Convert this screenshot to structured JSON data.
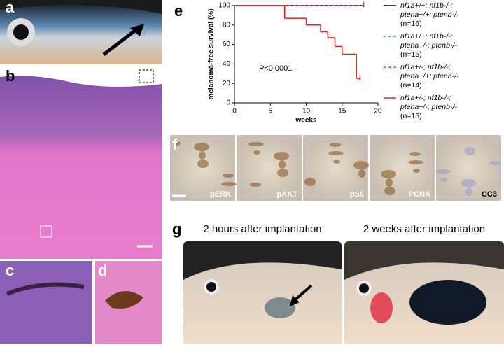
{
  "panel_labels": [
    "a",
    "b",
    "c",
    "d",
    "e",
    "f",
    "g"
  ],
  "stains": [
    "pERK",
    "pAKT",
    "pS6",
    "PCNA",
    "CC3"
  ],
  "implantation_titles": [
    "2 hours after implantation",
    "2 weeks after implantation"
  ],
  "chart_data": {
    "type": "step",
    "ylabel": "melanoma-free survival (%)",
    "xlabel": "weeks",
    "annotation": "P<0.0001",
    "xlim": [
      0,
      20
    ],
    "xticks": [
      0,
      5,
      10,
      15,
      20
    ],
    "ylim": [
      0,
      100
    ],
    "yticks": [
      0,
      20,
      40,
      60,
      80,
      100
    ],
    "series": [
      {
        "name": "nf1a+/+; nf1b-/-;\nptena+/+; ptenb-/-\n(n=16)",
        "color": "#000000",
        "dash": false,
        "x": [
          0,
          18
        ],
        "values": [
          100,
          100
        ]
      },
      {
        "name": "nf1a+/+; nf1b-/-;\nptena+/-; ptenb-/-\n(n=15)",
        "color": "#2eb82e",
        "dash": true,
        "x": [
          0,
          18
        ],
        "values": [
          100,
          100
        ]
      },
      {
        "name": "nf1a+/-; nf1b-/-;\nptena+/+; ptenb-/-\n(n=14)",
        "color": "#d633d6",
        "dash": true,
        "x": [
          0,
          18
        ],
        "values": [
          100,
          100
        ]
      },
      {
        "name": "nf1a+/-; nf1b-/-;\nptena+/-; ptenb-/-\n(n=15)",
        "color": "#e8231e",
        "dash": false,
        "x": [
          0,
          7,
          10,
          12,
          13,
          14,
          15,
          17,
          17.5
        ],
        "values": [
          100,
          87,
          80,
          73,
          67,
          58,
          50,
          25,
          25
        ]
      }
    ]
  }
}
